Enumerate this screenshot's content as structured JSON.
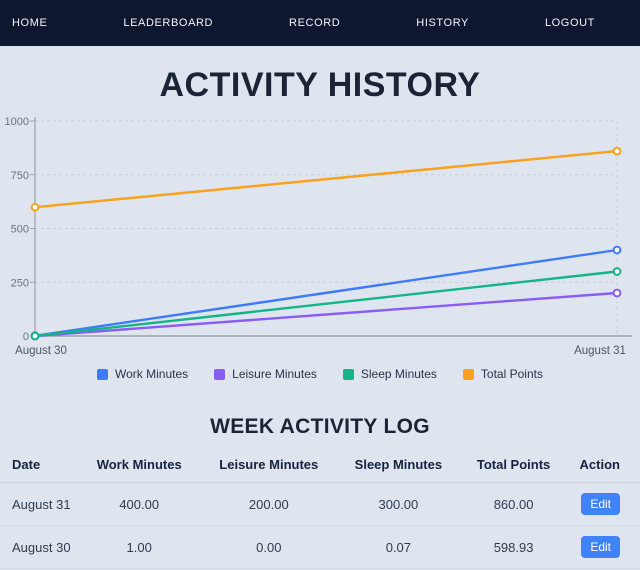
{
  "nav": {
    "bg": "#0f1630",
    "items": [
      "HOME",
      "LEADERBOARD",
      "RECORD",
      "HISTORY",
      "LOGOUT"
    ]
  },
  "page": {
    "title": "ACTIVITY HISTORY",
    "log_title": "WEEK ACTIVITY LOG",
    "background": "#dfe5ef"
  },
  "chart_data": {
    "type": "line",
    "x": [
      "August 30",
      "August 31"
    ],
    "series": [
      {
        "name": "Work Minutes",
        "values": [
          1.0,
          400.0
        ],
        "color": "#3e7bfa"
      },
      {
        "name": "Leisure Minutes",
        "values": [
          0.0,
          200.0
        ],
        "color": "#8a5cf6"
      },
      {
        "name": "Sleep Minutes",
        "values": [
          0.07,
          300.0
        ],
        "color": "#12b585"
      },
      {
        "name": "Total Points",
        "values": [
          598.93,
          860.0
        ],
        "color": "#f9a11c"
      }
    ],
    "ylim": [
      0,
      1000
    ],
    "yticks": [
      0,
      250,
      500,
      750,
      1000
    ],
    "grid": true,
    "legend_position": "bottom",
    "marker": "circle-open"
  },
  "table": {
    "headers": [
      "Date",
      "Work Minutes",
      "Leisure Minutes",
      "Sleep Minutes",
      "Total Points",
      "Action"
    ],
    "rows": [
      {
        "date": "August 31",
        "work": "400.00",
        "leisure": "200.00",
        "sleep": "300.00",
        "total": "860.00",
        "action": "Edit"
      },
      {
        "date": "August 30",
        "work": "1.00",
        "leisure": "0.00",
        "sleep": "0.07",
        "total": "598.93",
        "action": "Edit"
      }
    ]
  }
}
